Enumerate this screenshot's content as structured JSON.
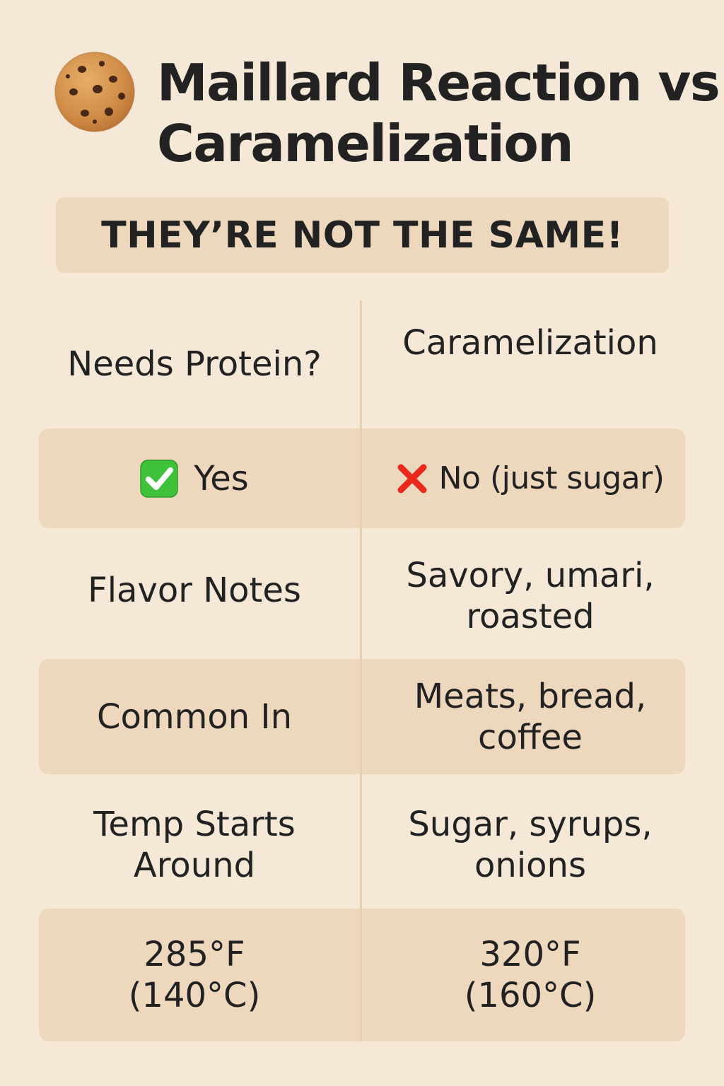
{
  "header": {
    "title_line1": "Maillard Reaction vs",
    "title_line2": "Caramelization",
    "icon": "cookie-icon"
  },
  "banner": {
    "text": "THEY’RE NOT THE SAME!"
  },
  "table": {
    "rows": [
      {
        "left": "Needs Protein?",
        "right": "Caramelization",
        "shaded": false
      },
      {
        "left": "Yes",
        "left_icon": "check-mark-icon",
        "right": "No (just sugar)",
        "right_icon": "cross-mark-icon",
        "shaded": true
      },
      {
        "left": "Flavor Notes",
        "right": "Savory, umari, roasted",
        "shaded": false
      },
      {
        "left": "Common In",
        "right": "Meats, bread, coffee",
        "shaded": true
      },
      {
        "left": "Temp Starts Around",
        "right": "Sugar, syrups, onions",
        "shaded": false
      },
      {
        "left": "285°F (140°C)",
        "right": "320°F (160°C)",
        "shaded": true
      }
    ]
  },
  "colors": {
    "background": "#f6e8d6",
    "shaded_row": "#eed8bd",
    "text": "#222222",
    "check_green": "#3fc23a",
    "cross_red": "#e8291c"
  }
}
